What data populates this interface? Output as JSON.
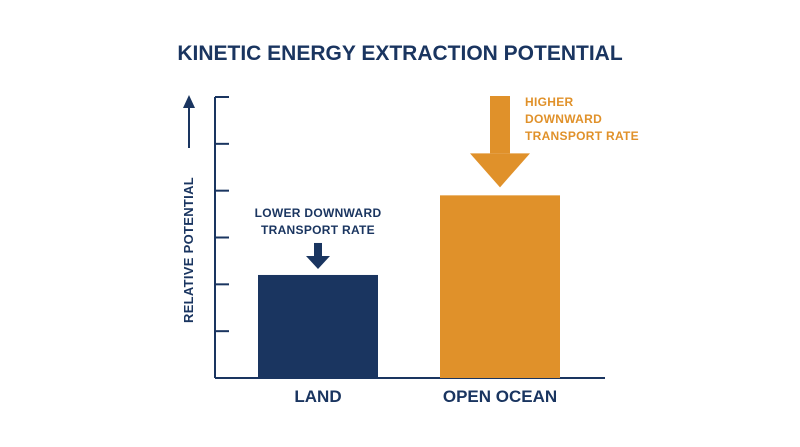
{
  "chart_data": {
    "type": "bar",
    "title": "KINETIC ENERGY EXTRACTION POTENTIAL",
    "ylabel": "RELATIVE POTENTIAL",
    "xlabel": "",
    "categories": [
      "LAND",
      "OPEN OCEAN"
    ],
    "values": [
      2.2,
      3.9
    ],
    "ylim": [
      0,
      6
    ],
    "yticks": [
      0,
      1,
      2,
      3,
      4,
      5,
      6
    ],
    "tick_labels_shown": false,
    "grid": false,
    "colors": [
      "#1a3560",
      "#e0912a"
    ],
    "annotations": [
      {
        "category": "LAND",
        "lines": [
          "LOWER DOWNWARD",
          "TRANSPORT RATE"
        ],
        "color": "#1a3560",
        "arrow": "down",
        "arrow_size": "small",
        "text_position": "above-arrow"
      },
      {
        "category": "OPEN OCEAN",
        "lines": [
          "HIGHER",
          "DOWNWARD",
          "TRANSPORT RATE"
        ],
        "color": "#e0912a",
        "arrow": "down",
        "arrow_size": "large",
        "text_position": "right-of-arrow"
      }
    ]
  },
  "colors": {
    "axis": "#1a3560",
    "text": "#1a3560",
    "land": "#1a3560",
    "ocean": "#e0912a",
    "background": "#ffffff"
  }
}
